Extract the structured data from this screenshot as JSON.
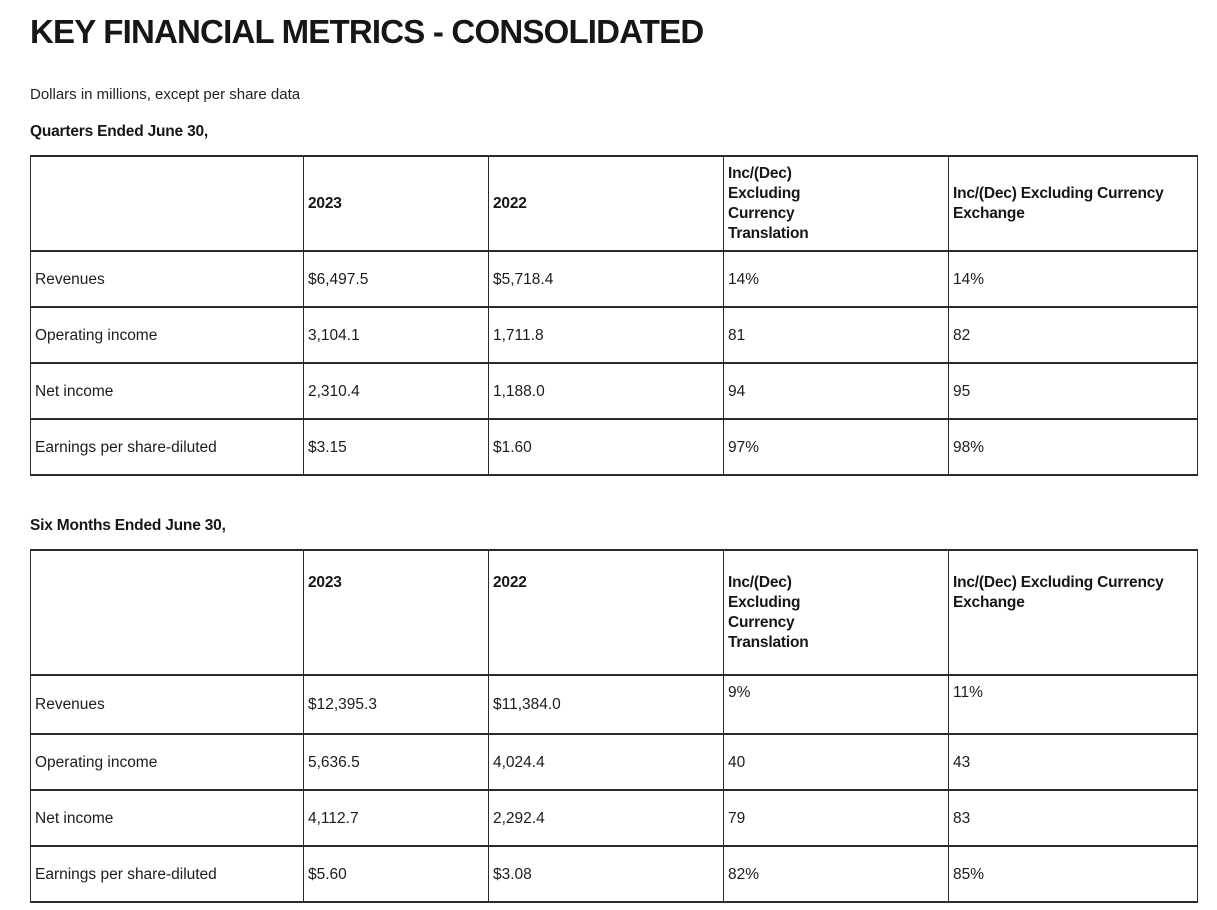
{
  "page": {
    "title": "KEY FINANCIAL METRICS - CONSOLIDATED",
    "subtitle": "Dollars in millions, except per share data"
  },
  "tables": [
    {
      "id": "quarters",
      "section_heading": "Quarters Ended June 30,",
      "columns": [
        "",
        "2023",
        "2022",
        "Inc/(Dec)\nExcluding\nCurrency\nTranslation",
        "Inc/(Dec) Excluding Currency\nExchange"
      ],
      "rows": [
        {
          "label": "Revenues",
          "values": [
            "$6,497.5",
            "$5,718.4",
            "14%",
            "14%"
          ]
        },
        {
          "label": "Operating income",
          "values": [
            "3,104.1",
            "1,711.8",
            "81",
            "82"
          ]
        },
        {
          "label": "Net income",
          "values": [
            "2,310.4",
            "1,188.0",
            "94",
            "95"
          ]
        },
        {
          "label": "Earnings per share-diluted",
          "values": [
            "$3.15",
            "$1.60",
            "97%",
            "98%"
          ]
        }
      ]
    },
    {
      "id": "six-months",
      "section_heading": "Six Months Ended June 30,",
      "columns": [
        "",
        "2023",
        "2022",
        "Inc/(Dec)\nExcluding\nCurrency\nTranslation",
        "Inc/(Dec) Excluding Currency\nExchange"
      ],
      "rows": [
        {
          "label": "Revenues",
          "values": [
            "$12,395.3",
            "$11,384.0",
            "9%",
            "11%"
          ]
        },
        {
          "label": "Operating income",
          "values": [
            "5,636.5",
            "4,024.4",
            "40",
            "43"
          ]
        },
        {
          "label": "Net income",
          "values": [
            "4,112.7",
            "2,292.4",
            "79",
            "83"
          ]
        },
        {
          "label": "Earnings per share-diluted",
          "values": [
            "$5.60",
            "$3.08",
            "82%",
            "85%"
          ]
        }
      ]
    }
  ],
  "colors": {
    "text": "#1c1c1c",
    "border": "#2b2b2b",
    "background": "#ffffff"
  }
}
